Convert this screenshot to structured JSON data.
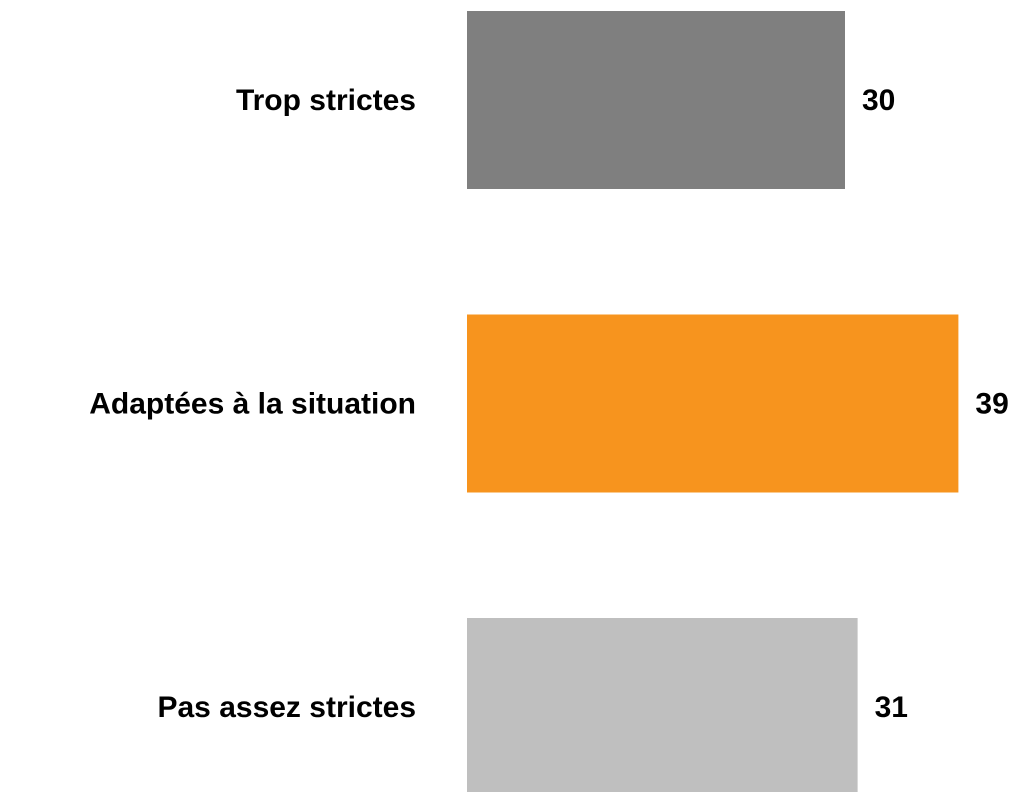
{
  "chart_data": {
    "type": "barh",
    "categories": [
      "Trop strictes",
      "Adaptées à la situation",
      "Pas assez strictes"
    ],
    "values": [
      30,
      39,
      31
    ],
    "colors": [
      "#7f7f7f",
      "#f7941e",
      "#bfbfbf"
    ]
  }
}
